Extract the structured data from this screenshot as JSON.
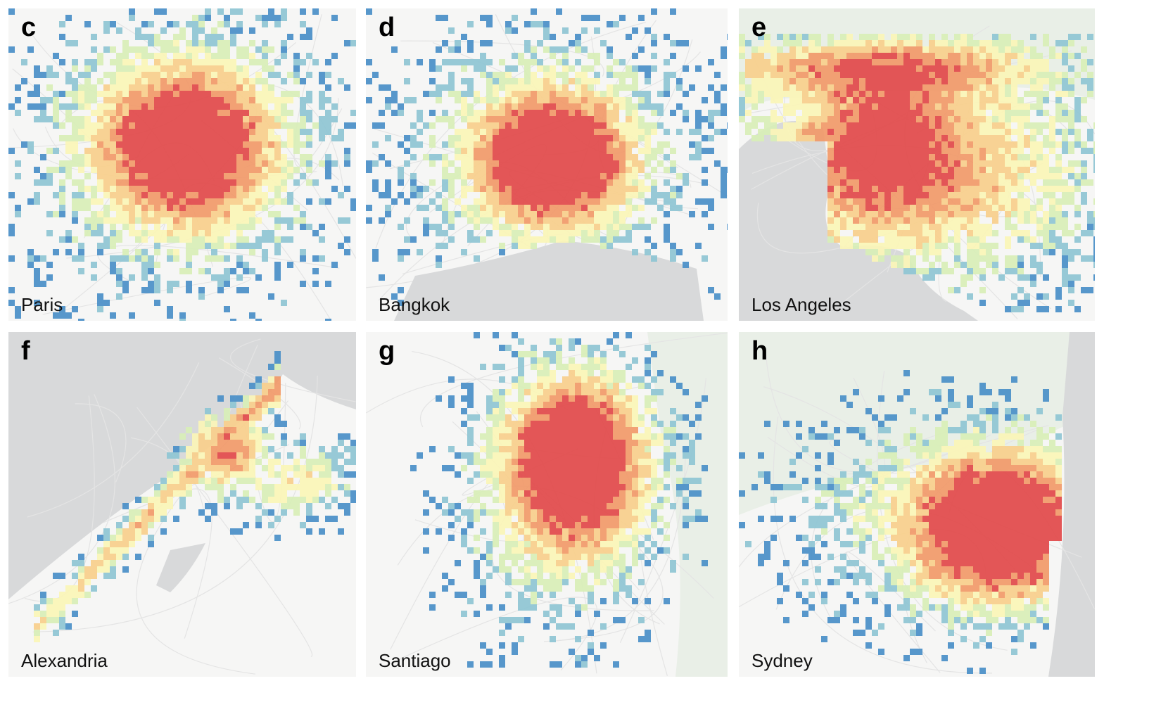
{
  "colors": {
    "water": "#d8d9da",
    "land": "#f6f6f5",
    "park": "#e9efe7",
    "road": "#e4e4e4",
    "scale": [
      "#4a90c8",
      "#8fc6d4",
      "#d9efb8",
      "#fbf6b8",
      "#f9d08c",
      "#f29a6a",
      "#e2494a"
    ]
  },
  "panels": [
    {
      "letter": "c",
      "city": "Paris",
      "shape": "radial"
    },
    {
      "letter": "d",
      "city": "Bangkok",
      "shape": "radial-south-coast"
    },
    {
      "letter": "e",
      "city": "Los Angeles",
      "shape": "basin-west-coast"
    },
    {
      "letter": "f",
      "city": "Alexandria",
      "shape": "coastal-strip"
    },
    {
      "letter": "g",
      "city": "Santiago",
      "shape": "radial-compact"
    },
    {
      "letter": "h",
      "city": "Sydney",
      "shape": "radial-east-coast"
    }
  ]
}
